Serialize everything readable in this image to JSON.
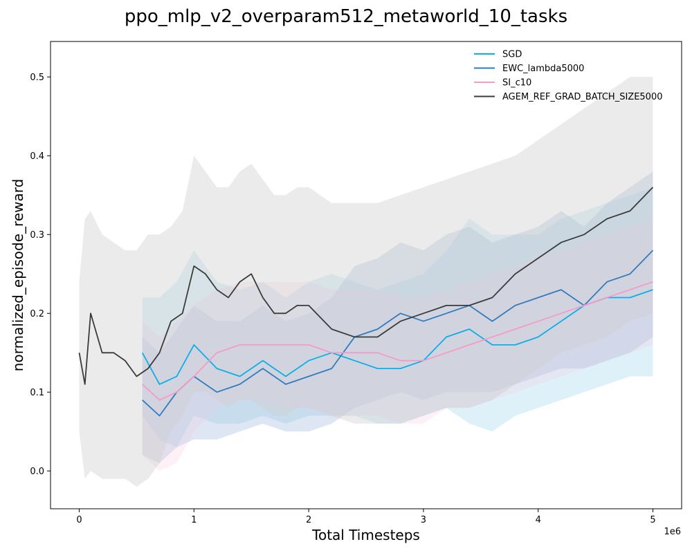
{
  "chart_data": {
    "type": "line",
    "title": "ppo_mlp_v2_overparam512_metaworld_10_tasks",
    "xlabel": "Total Timesteps",
    "ylabel": "normalized_episode_reward",
    "x_scale_label": "1e6",
    "xlim": [
      -0.25,
      5.25
    ],
    "ylim": [
      -0.048,
      0.545
    ],
    "x_ticks": [
      0,
      1,
      2,
      3,
      4,
      5
    ],
    "x_tick_labels": [
      "0",
      "1",
      "2",
      "3",
      "4",
      "5"
    ],
    "y_ticks": [
      0.0,
      0.1,
      0.2,
      0.3,
      0.4,
      0.5
    ],
    "y_tick_labels": [
      "0.0",
      "0.1",
      "0.2",
      "0.3",
      "0.4",
      "0.5"
    ],
    "legend_position": "top-right",
    "series": [
      {
        "name": "SGD",
        "color": "#0aaee8",
        "band_color": "#87ceeb",
        "x": [
          0.55,
          0.7,
          0.85,
          1.0,
          1.2,
          1.4,
          1.6,
          1.8,
          2.0,
          2.2,
          2.4,
          2.6,
          2.8,
          3.0,
          3.2,
          3.4,
          3.6,
          3.8,
          4.0,
          4.2,
          4.4,
          4.6,
          4.8,
          5.0
        ],
        "values": [
          0.15,
          0.11,
          0.12,
          0.16,
          0.13,
          0.12,
          0.14,
          0.12,
          0.14,
          0.15,
          0.14,
          0.13,
          0.13,
          0.14,
          0.17,
          0.18,
          0.16,
          0.16,
          0.17,
          0.19,
          0.21,
          0.22,
          0.22,
          0.23
        ],
        "lower": [
          0.07,
          0.04,
          0.03,
          0.07,
          0.06,
          0.06,
          0.07,
          0.06,
          0.07,
          0.07,
          0.07,
          0.06,
          0.06,
          0.07,
          0.08,
          0.06,
          0.05,
          0.07,
          0.08,
          0.09,
          0.1,
          0.11,
          0.12,
          0.12
        ],
        "upper": [
          0.22,
          0.22,
          0.24,
          0.28,
          0.24,
          0.23,
          0.24,
          0.22,
          0.24,
          0.25,
          0.24,
          0.23,
          0.24,
          0.25,
          0.28,
          0.32,
          0.3,
          0.3,
          0.3,
          0.32,
          0.33,
          0.34,
          0.35,
          0.36
        ]
      },
      {
        "name": "EWC_lambda5000",
        "color": "#2f7bbf",
        "band_color": "#9fb8d9",
        "x": [
          0.55,
          0.7,
          0.85,
          1.0,
          1.2,
          1.4,
          1.6,
          1.8,
          2.0,
          2.2,
          2.4,
          2.6,
          2.8,
          3.0,
          3.2,
          3.4,
          3.6,
          3.8,
          4.0,
          4.2,
          4.4,
          4.6,
          4.8,
          5.0
        ],
        "values": [
          0.09,
          0.07,
          0.1,
          0.12,
          0.1,
          0.11,
          0.13,
          0.11,
          0.12,
          0.13,
          0.17,
          0.18,
          0.2,
          0.19,
          0.2,
          0.21,
          0.19,
          0.21,
          0.22,
          0.23,
          0.21,
          0.24,
          0.25,
          0.28
        ],
        "lower": [
          0.02,
          0.01,
          0.03,
          0.04,
          0.04,
          0.05,
          0.06,
          0.05,
          0.05,
          0.06,
          0.08,
          0.09,
          0.1,
          0.09,
          0.1,
          0.1,
          0.1,
          0.11,
          0.12,
          0.13,
          0.13,
          0.14,
          0.15,
          0.17
        ],
        "upper": [
          0.17,
          0.15,
          0.18,
          0.21,
          0.19,
          0.19,
          0.21,
          0.19,
          0.2,
          0.22,
          0.26,
          0.27,
          0.29,
          0.28,
          0.3,
          0.31,
          0.29,
          0.3,
          0.31,
          0.33,
          0.31,
          0.34,
          0.36,
          0.38
        ]
      },
      {
        "name": "SI_c10",
        "color": "#f39bc8",
        "band_color": "#f8c8df",
        "x": [
          0.55,
          0.7,
          0.85,
          1.0,
          1.2,
          1.4,
          1.6,
          1.8,
          2.0,
          2.2,
          2.4,
          2.6,
          2.8,
          3.0,
          3.2,
          3.4,
          3.6,
          3.8,
          4.0,
          4.2,
          4.4,
          4.6,
          4.8,
          5.0
        ],
        "values": [
          0.11,
          0.09,
          0.1,
          0.12,
          0.15,
          0.16,
          0.16,
          0.16,
          0.16,
          0.15,
          0.15,
          0.15,
          0.14,
          0.14,
          0.15,
          0.16,
          0.17,
          0.18,
          0.19,
          0.2,
          0.21,
          0.22,
          0.23,
          0.24
        ],
        "lower": [
          0.02,
          0.0,
          0.01,
          0.05,
          0.08,
          0.09,
          0.09,
          0.08,
          0.08,
          0.07,
          0.07,
          0.07,
          0.06,
          0.06,
          0.08,
          0.08,
          0.09,
          0.1,
          0.11,
          0.12,
          0.13,
          0.14,
          0.15,
          0.16
        ],
        "upper": [
          0.19,
          0.17,
          0.19,
          0.21,
          0.23,
          0.24,
          0.24,
          0.24,
          0.24,
          0.23,
          0.23,
          0.23,
          0.22,
          0.22,
          0.23,
          0.24,
          0.25,
          0.26,
          0.27,
          0.28,
          0.29,
          0.3,
          0.31,
          0.32
        ]
      },
      {
        "name": "AGEM_REF_GRAD_BATCH_SIZE5000",
        "color": "#3a3a3a",
        "band_color": "#cfcfcf",
        "x": [
          0.0,
          0.05,
          0.1,
          0.2,
          0.3,
          0.4,
          0.5,
          0.6,
          0.7,
          0.8,
          0.9,
          1.0,
          1.1,
          1.2,
          1.3,
          1.4,
          1.5,
          1.6,
          1.7,
          1.8,
          1.9,
          2.0,
          2.2,
          2.4,
          2.6,
          2.8,
          3.0,
          3.2,
          3.4,
          3.6,
          3.8,
          4.0,
          4.2,
          4.4,
          4.6,
          4.8,
          5.0
        ],
        "values": [
          0.15,
          0.11,
          0.2,
          0.15,
          0.15,
          0.14,
          0.12,
          0.13,
          0.15,
          0.19,
          0.2,
          0.26,
          0.25,
          0.23,
          0.22,
          0.24,
          0.25,
          0.22,
          0.2,
          0.2,
          0.21,
          0.21,
          0.18,
          0.17,
          0.17,
          0.19,
          0.2,
          0.21,
          0.21,
          0.22,
          0.25,
          0.27,
          0.29,
          0.3,
          0.32,
          0.33,
          0.36
        ],
        "lower": [
          0.05,
          -0.01,
          0.0,
          -0.01,
          -0.01,
          -0.01,
          -0.02,
          -0.01,
          0.01,
          0.05,
          0.07,
          0.1,
          0.1,
          0.09,
          0.08,
          0.09,
          0.09,
          0.08,
          0.07,
          0.07,
          0.08,
          0.08,
          0.07,
          0.06,
          0.06,
          0.06,
          0.07,
          0.08,
          0.08,
          0.09,
          0.11,
          0.13,
          0.15,
          0.16,
          0.17,
          0.19,
          0.2
        ],
        "upper": [
          0.24,
          0.32,
          0.33,
          0.3,
          0.29,
          0.28,
          0.28,
          0.3,
          0.3,
          0.31,
          0.33,
          0.4,
          0.38,
          0.36,
          0.36,
          0.38,
          0.39,
          0.37,
          0.35,
          0.35,
          0.36,
          0.36,
          0.34,
          0.34,
          0.34,
          0.35,
          0.36,
          0.37,
          0.38,
          0.39,
          0.4,
          0.42,
          0.44,
          0.46,
          0.48,
          0.5,
          0.5
        ]
      }
    ]
  }
}
